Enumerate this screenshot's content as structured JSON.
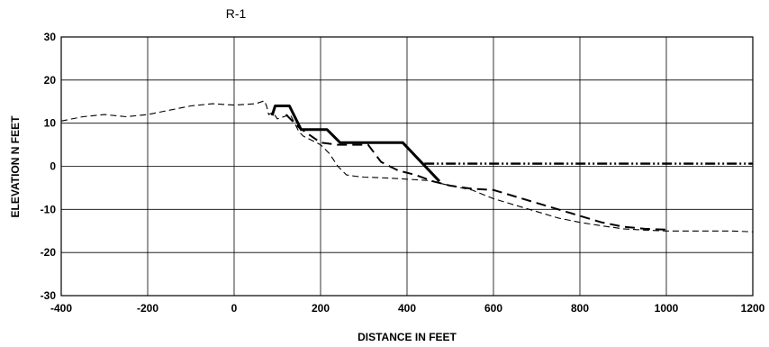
{
  "chart_data": {
    "type": "line",
    "title": "R-1",
    "xlabel": "DISTANCE IN FEET",
    "ylabel": "ELEVATION N FEET",
    "xlim": [
      -400,
      1200
    ],
    "ylim": [
      -30,
      30
    ],
    "xticks": [
      -400,
      -200,
      0,
      200,
      400,
      600,
      800,
      1000,
      1200
    ],
    "yticks": [
      30,
      20,
      10,
      0,
      -10,
      -20,
      -30
    ],
    "grid": true,
    "series": [
      {
        "style": "thin-dashed",
        "x": [
          -400,
          -350,
          -300,
          -250,
          -200,
          -150,
          -100,
          -50,
          0,
          50,
          70,
          75,
          80,
          90,
          100,
          130,
          150,
          160,
          180,
          200,
          220,
          240,
          260,
          280,
          300,
          350,
          400,
          450,
          500,
          550,
          600,
          650,
          700,
          750,
          800,
          850,
          900,
          950,
          1000,
          1050,
          1100,
          1150,
          1200
        ],
        "y": [
          10.5,
          11.5,
          12,
          11.5,
          12,
          13,
          14,
          14.5,
          14.2,
          14.5,
          15.2,
          14,
          12,
          12.5,
          11,
          12,
          8,
          7,
          6,
          5,
          3,
          0,
          -2,
          -2.3,
          -2.5,
          -2.7,
          -3,
          -3.3,
          -4.5,
          -5.5,
          -7.5,
          -9,
          -10.5,
          -12,
          -13,
          -13.8,
          -14.5,
          -14.8,
          -15,
          -15,
          -15,
          -15,
          -15.2
        ]
      },
      {
        "style": "thick-solid",
        "x": [
          88,
          95,
          128,
          155,
          215,
          245,
          390,
          475
        ],
        "y": [
          11.8,
          14,
          14,
          8.5,
          8.5,
          5.5,
          5.5,
          -3.5
        ]
      },
      {
        "style": "medium-dashed",
        "x": [
          120,
          130,
          150,
          200,
          240,
          310,
          340,
          380,
          420,
          460,
          500,
          550,
          600,
          650,
          700,
          750,
          800,
          850,
          900,
          950,
          1000
        ],
        "y": [
          12,
          11,
          9,
          5.5,
          5,
          5,
          1,
          -1,
          -2,
          -3.5,
          -4.5,
          -5.2,
          -5.5,
          -7,
          -8.5,
          -10,
          -11.5,
          -13,
          -14,
          -14.5,
          -14.7
        ]
      },
      {
        "style": "dash-dot-dot",
        "x": [
          440,
          1200
        ],
        "y": [
          0.6,
          0.6
        ]
      }
    ]
  }
}
